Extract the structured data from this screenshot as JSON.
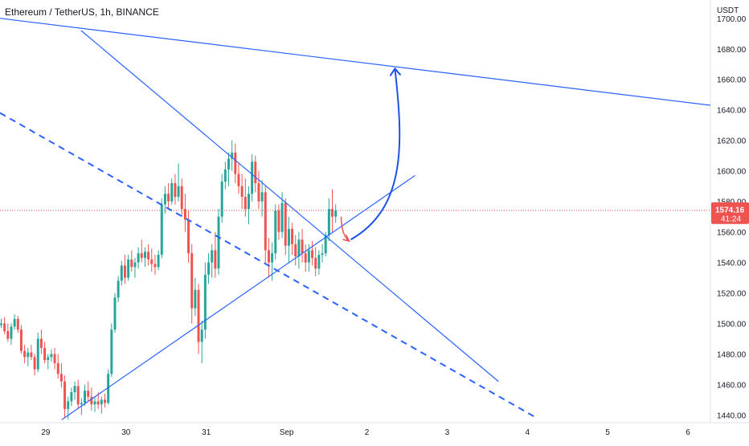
{
  "header": {
    "symbol_title": "Ethereum / TetherUS, 1h, BINANCE"
  },
  "price_axis": {
    "unit_label": "USDT",
    "current_price": "1574.16",
    "countdown": "41:24"
  },
  "colors": {
    "up": "#26a69a",
    "down": "#ef5350",
    "trendline": "#2962ff",
    "current_price_line": "#ef5350",
    "axis_text": "#131722",
    "arrow_up": "#1e53e5",
    "arrow_down": "#ef5350"
  },
  "chart_data": {
    "type": "candlestick",
    "title": "Ethereum / TetherUS, 1h, BINANCE",
    "ylabel": "USDT",
    "ylim": [
      1435,
      1712
    ],
    "y_ticks": [
      1440,
      1460,
      1480,
      1500,
      1520,
      1540,
      1560,
      1580,
      1600,
      1620,
      1640,
      1660,
      1680,
      1700
    ],
    "y_tick_labels": [
      "1440.00",
      "1460.00",
      "1480.00",
      "1500.00",
      "1520.00",
      "1540.00",
      "1560.00",
      "1580.00",
      "1600.00",
      "1620.00",
      "1640.00",
      "1660.00",
      "1680.00",
      "1700.00"
    ],
    "x_ticks": [
      "29",
      "30",
      "31",
      "Sep",
      "2",
      "3",
      "4",
      "5",
      "6"
    ],
    "x_tick_positions_days": [
      1,
      2,
      3,
      4,
      5,
      6,
      7,
      8,
      9
    ],
    "xlim_days": [
      0.43,
      9.28
    ],
    "last_price": 1574.16,
    "candles": [
      [
        1499,
        1503,
        1497,
        1500
      ],
      [
        1500,
        1504,
        1493,
        1495
      ],
      [
        1495,
        1500,
        1488,
        1490
      ],
      [
        1490,
        1500,
        1486,
        1498
      ],
      [
        1498,
        1506,
        1496,
        1503
      ],
      [
        1503,
        1505,
        1494,
        1496
      ],
      [
        1496,
        1499,
        1480,
        1482
      ],
      [
        1482,
        1486,
        1474,
        1478
      ],
      [
        1478,
        1484,
        1472,
        1481
      ],
      [
        1481,
        1486,
        1476,
        1478
      ],
      [
        1478,
        1480,
        1466,
        1470
      ],
      [
        1470,
        1494,
        1468,
        1490
      ],
      [
        1490,
        1496,
        1480,
        1484
      ],
      [
        1484,
        1488,
        1474,
        1476
      ],
      [
        1476,
        1480,
        1470,
        1478
      ],
      [
        1478,
        1483,
        1475,
        1480
      ],
      [
        1480,
        1484,
        1470,
        1474
      ],
      [
        1474,
        1480,
        1464,
        1467
      ],
      [
        1467,
        1474,
        1458,
        1462
      ],
      [
        1462,
        1466,
        1438,
        1444
      ],
      [
        1444,
        1452,
        1437,
        1449
      ],
      [
        1449,
        1458,
        1446,
        1455
      ],
      [
        1455,
        1462,
        1450,
        1459
      ],
      [
        1459,
        1463,
        1444,
        1447
      ],
      [
        1447,
        1451,
        1440,
        1448
      ],
      [
        1448,
        1460,
        1446,
        1456
      ],
      [
        1456,
        1462,
        1449,
        1452
      ],
      [
        1452,
        1458,
        1443,
        1447
      ],
      [
        1447,
        1452,
        1442,
        1449
      ],
      [
        1449,
        1455,
        1444,
        1447
      ],
      [
        1447,
        1452,
        1441,
        1450
      ],
      [
        1450,
        1454,
        1445,
        1448
      ],
      [
        1448,
        1470,
        1447,
        1467
      ],
      [
        1467,
        1500,
        1465,
        1496
      ],
      [
        1496,
        1520,
        1494,
        1517
      ],
      [
        1517,
        1531,
        1514,
        1528
      ],
      [
        1528,
        1541,
        1525,
        1538
      ],
      [
        1538,
        1545,
        1526,
        1530
      ],
      [
        1530,
        1545,
        1528,
        1542
      ],
      [
        1542,
        1548,
        1534,
        1537
      ],
      [
        1537,
        1543,
        1530,
        1540
      ],
      [
        1540,
        1550,
        1536,
        1546
      ],
      [
        1546,
        1555,
        1540,
        1543
      ],
      [
        1543,
        1550,
        1537,
        1547
      ],
      [
        1547,
        1552,
        1538,
        1542
      ],
      [
        1542,
        1549,
        1534,
        1539
      ],
      [
        1539,
        1545,
        1532,
        1537
      ],
      [
        1537,
        1548,
        1535,
        1545
      ],
      [
        1545,
        1582,
        1543,
        1578
      ],
      [
        1578,
        1590,
        1572,
        1585
      ],
      [
        1585,
        1592,
        1575,
        1580
      ],
      [
        1580,
        1595,
        1578,
        1592
      ],
      [
        1592,
        1598,
        1578,
        1583
      ],
      [
        1583,
        1605,
        1580,
        1590
      ],
      [
        1590,
        1595,
        1570,
        1575
      ],
      [
        1575,
        1585,
        1560,
        1568
      ],
      [
        1568,
        1574,
        1540,
        1546
      ],
      [
        1546,
        1552,
        1500,
        1510
      ],
      [
        1510,
        1530,
        1505,
        1522
      ],
      [
        1522,
        1526,
        1480,
        1488
      ],
      [
        1488,
        1502,
        1474,
        1496
      ],
      [
        1496,
        1540,
        1490,
        1532
      ],
      [
        1532,
        1546,
        1526,
        1540
      ],
      [
        1540,
        1552,
        1530,
        1548
      ],
      [
        1548,
        1560,
        1530,
        1536
      ],
      [
        1536,
        1575,
        1532,
        1570
      ],
      [
        1570,
        1598,
        1566,
        1593
      ],
      [
        1593,
        1606,
        1588,
        1601
      ],
      [
        1601,
        1612,
        1590,
        1608
      ],
      [
        1608,
        1620,
        1600,
        1612
      ],
      [
        1612,
        1618,
        1592,
        1598
      ],
      [
        1598,
        1605,
        1585,
        1590
      ],
      [
        1590,
        1598,
        1575,
        1583
      ],
      [
        1583,
        1595,
        1570,
        1575
      ],
      [
        1575,
        1590,
        1565,
        1585
      ],
      [
        1585,
        1611,
        1580,
        1606
      ],
      [
        1606,
        1610,
        1586,
        1592
      ],
      [
        1592,
        1600,
        1575,
        1580
      ],
      [
        1580,
        1594,
        1570,
        1586
      ],
      [
        1586,
        1590,
        1540,
        1548
      ],
      [
        1548,
        1556,
        1530,
        1540
      ],
      [
        1540,
        1553,
        1528,
        1546
      ],
      [
        1546,
        1578,
        1542,
        1574
      ],
      [
        1574,
        1578,
        1555,
        1560
      ],
      [
        1560,
        1586,
        1556,
        1579
      ],
      [
        1579,
        1582,
        1545,
        1551
      ],
      [
        1551,
        1570,
        1540,
        1562
      ],
      [
        1562,
        1566,
        1545,
        1552
      ],
      [
        1552,
        1558,
        1538,
        1544
      ],
      [
        1544,
        1560,
        1536,
        1555
      ],
      [
        1555,
        1562,
        1540,
        1546
      ],
      [
        1546,
        1552,
        1534,
        1540
      ],
      [
        1540,
        1552,
        1534,
        1548
      ],
      [
        1548,
        1554,
        1538,
        1543
      ],
      [
        1543,
        1550,
        1531,
        1536
      ],
      [
        1536,
        1548,
        1532,
        1545
      ],
      [
        1545,
        1552,
        1540,
        1546
      ],
      [
        1546,
        1560,
        1544,
        1558
      ],
      [
        1558,
        1582,
        1554,
        1575
      ],
      [
        1575,
        1588,
        1560,
        1570
      ],
      [
        1570,
        1578,
        1566,
        1574.16
      ]
    ],
    "trendlines": [
      {
        "name": "upper-resistance-line",
        "style": "solid",
        "points": [
          [
            0.43,
            1700
          ],
          [
            9.28,
            1643
          ]
        ]
      },
      {
        "name": "descending-triangle-top-line",
        "style": "solid",
        "points": [
          [
            1.44,
            1692
          ],
          [
            6.64,
            1462
          ]
        ]
      },
      {
        "name": "dashed-descending-support-line",
        "style": "dashed",
        "points": [
          [
            0.43,
            1638
          ],
          [
            7.12,
            1438
          ]
        ]
      },
      {
        "name": "ascending-support-line",
        "style": "solid",
        "points": [
          [
            1.2,
            1437
          ],
          [
            5.6,
            1597
          ]
        ]
      }
    ],
    "annotations": [
      {
        "name": "curved-target-arrow",
        "color": "blue",
        "from": [
          4.8,
          1555
        ],
        "to": [
          5.35,
          1667
        ]
      },
      {
        "name": "curved-pullback-arrow",
        "color": "red",
        "from": [
          4.68,
          1570
        ],
        "to": [
          4.78,
          1554
        ]
      }
    ]
  }
}
